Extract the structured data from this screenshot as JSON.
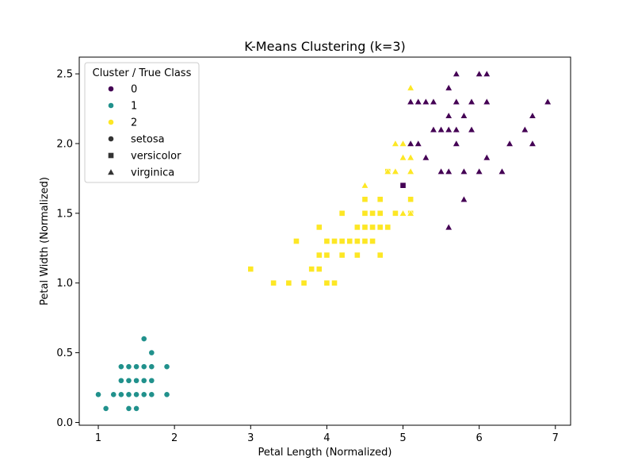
{
  "chart_data": {
    "type": "scatter",
    "title": "K-Means Clustering (k=3)",
    "xlabel": "Petal Length (Normalized)",
    "ylabel": "Petal Width (Normalized)",
    "xlim": [
      0.75,
      7.2
    ],
    "ylim": [
      -0.02,
      2.62
    ],
    "xticks": [
      1,
      2,
      3,
      4,
      5,
      6,
      7
    ],
    "yticks": [
      0.0,
      0.5,
      1.0,
      1.5,
      2.0,
      2.5
    ],
    "grid": false,
    "legend": {
      "title": "Cluster / True Class",
      "placement": "top-left",
      "cluster_entries": [
        {
          "label": "0",
          "color": "#440154"
        },
        {
          "label": "1",
          "color": "#21918c"
        },
        {
          "label": "2",
          "color": "#fde725"
        }
      ],
      "class_entries": [
        {
          "label": "setosa",
          "marker": "circle"
        },
        {
          "label": "versicolor",
          "marker": "square"
        },
        {
          "label": "virginica",
          "marker": "triangle"
        }
      ]
    },
    "series": [
      {
        "cluster": "1",
        "class": "setosa",
        "color": "#21918c",
        "marker": "circle",
        "x": [
          1.0,
          1.1,
          1.2,
          1.3,
          1.4,
          1.5,
          1.6,
          1.7,
          1.9,
          1.3,
          1.4,
          1.5,
          1.6,
          1.7,
          1.3,
          1.4,
          1.5,
          1.6,
          1.7,
          1.9,
          1.4,
          1.5,
          1.6,
          1.7,
          1.9,
          1.5,
          1.6,
          1.7,
          1.4,
          1.5
        ],
        "y": [
          0.2,
          0.1,
          0.2,
          0.2,
          0.2,
          0.2,
          0.2,
          0.2,
          0.2,
          0.3,
          0.3,
          0.3,
          0.3,
          0.3,
          0.4,
          0.4,
          0.4,
          0.4,
          0.4,
          0.4,
          0.2,
          0.2,
          0.2,
          0.2,
          0.2,
          0.1,
          0.6,
          0.5,
          0.1,
          0.4
        ]
      },
      {
        "cluster": "2",
        "class": "versicolor",
        "color": "#fde725",
        "marker": "square",
        "x": [
          3.0,
          3.3,
          3.5,
          3.7,
          4.0,
          4.1,
          3.8,
          3.9,
          3.9,
          4.0,
          4.2,
          4.4,
          4.7,
          3.6,
          4.0,
          4.1,
          4.2,
          4.3,
          4.4,
          4.5,
          4.6,
          3.9,
          4.4,
          4.5,
          4.6,
          4.7,
          4.8,
          4.2,
          4.5,
          4.6,
          4.7,
          4.9,
          5.1,
          4.5,
          4.7,
          5.1,
          4.8
        ],
        "y": [
          1.1,
          1.0,
          1.0,
          1.0,
          1.0,
          1.0,
          1.1,
          1.1,
          1.2,
          1.2,
          1.2,
          1.2,
          1.2,
          1.3,
          1.3,
          1.3,
          1.3,
          1.3,
          1.3,
          1.3,
          1.3,
          1.4,
          1.4,
          1.4,
          1.4,
          1.4,
          1.4,
          1.5,
          1.5,
          1.5,
          1.5,
          1.5,
          1.5,
          1.6,
          1.6,
          1.6,
          1.8
        ]
      },
      {
        "cluster": "0",
        "class": "versicolor",
        "color": "#440154",
        "marker": "square",
        "x": [
          5.0
        ],
        "y": [
          1.7
        ]
      },
      {
        "cluster": "2",
        "class": "virginica",
        "color": "#fde725",
        "marker": "triangle",
        "x": [
          4.5,
          4.8,
          4.9,
          5.1,
          5.0,
          5.1,
          4.9,
          5.0,
          5.0,
          5.1,
          5.1
        ],
        "y": [
          1.7,
          1.8,
          1.8,
          1.8,
          1.9,
          1.9,
          2.0,
          2.0,
          1.5,
          1.5,
          2.4
        ]
      },
      {
        "cluster": "0",
        "class": "virginica",
        "color": "#440154",
        "marker": "triangle",
        "x": [
          5.7,
          6.0,
          6.1,
          5.6,
          5.1,
          5.2,
          5.3,
          5.4,
          5.7,
          5.9,
          6.1,
          6.9,
          5.6,
          5.8,
          6.7,
          5.4,
          5.5,
          5.6,
          5.7,
          5.9,
          6.6,
          5.1,
          5.2,
          5.7,
          6.4,
          6.7,
          5.3,
          6.1,
          5.5,
          5.6,
          5.8,
          6.0,
          6.3,
          5.8,
          5.6
        ],
        "y": [
          2.5,
          2.5,
          2.5,
          2.4,
          2.3,
          2.3,
          2.3,
          2.3,
          2.3,
          2.3,
          2.3,
          2.3,
          2.2,
          2.2,
          2.2,
          2.1,
          2.1,
          2.1,
          2.1,
          2.1,
          2.1,
          2.0,
          2.0,
          2.0,
          2.0,
          2.0,
          1.9,
          1.9,
          1.8,
          1.8,
          1.8,
          1.8,
          1.8,
          1.6,
          1.4
        ]
      }
    ]
  }
}
